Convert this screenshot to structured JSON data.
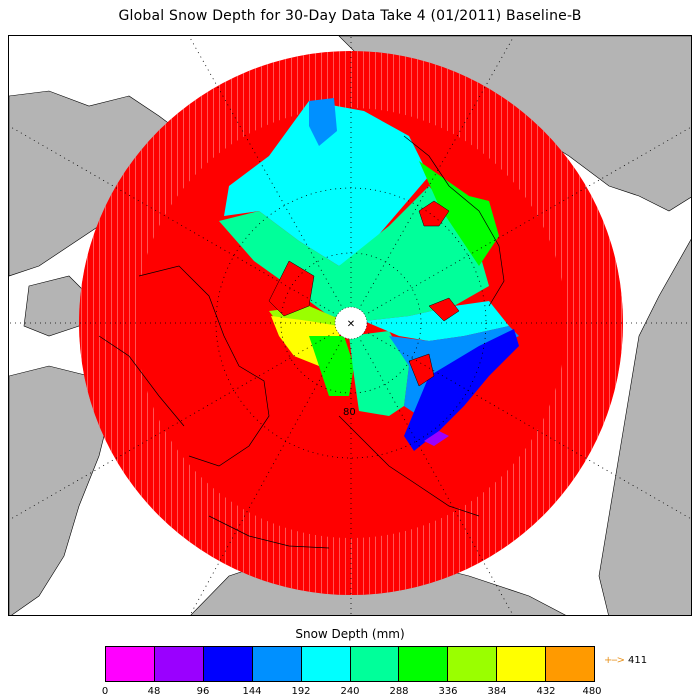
{
  "title": "Global Snow Depth for 30-Day Data Take 4 (01/2011) Baseline-B",
  "map": {
    "pole_marker": "✕",
    "latitude_label": "80"
  },
  "colorbar": {
    "label": "Snow Depth (mm)",
    "ticks": [
      "0",
      "48",
      "96",
      "144",
      "192",
      "240",
      "288",
      "336",
      "384",
      "432",
      "480"
    ],
    "colors": [
      "#ff00ff",
      "#9a00ff",
      "#0000ff",
      "#0090ff",
      "#00ffff",
      "#00ff9a",
      "#00ff00",
      "#9aff00",
      "#ffff00",
      "#ff9a00"
    ],
    "max_indicator": {
      "arrow": "+-->",
      "value": "411"
    }
  },
  "colors": {
    "land": "#b4b4b4",
    "ocean": "#ffffff",
    "snow_red": "#ff0000"
  }
}
